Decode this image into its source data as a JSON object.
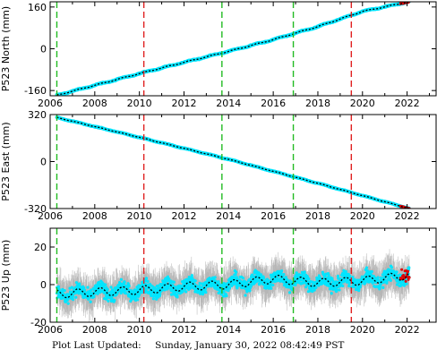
{
  "footer": {
    "label": "Plot Last Updated:",
    "timestamp": "Sunday, January 30, 2022 08:42:49 PST"
  },
  "colors": {
    "data": "#00e5ff",
    "model": "#000000",
    "error_bars": "#b0b0b0",
    "recent": "#e00000",
    "green_lines": "#22bb22",
    "red_lines": "#e02020"
  },
  "chart_data": [
    {
      "type": "scatter",
      "ylabel": "P523 North (mm)",
      "xlim": [
        2006.0,
        2023.3
      ],
      "ylim": [
        -180,
        180
      ],
      "yticks": [
        -160,
        0,
        160
      ],
      "xticks": [
        2006,
        2008,
        2010,
        2012,
        2014,
        2016,
        2018,
        2020,
        2022
      ],
      "green_lines": [
        2006.3,
        2013.7,
        2016.9
      ],
      "red_lines": [
        2010.2,
        2019.5
      ],
      "series": [
        {
          "x": [
            2006.3,
            2008,
            2010,
            2012,
            2014,
            2016,
            2018,
            2020,
            2022.1
          ],
          "values": [
            -178,
            -140,
            -95,
            -52,
            -10,
            35,
            85,
            143,
            180
          ]
        }
      ]
    },
    {
      "type": "scatter",
      "ylabel": "P523 East (mm)",
      "xlim": [
        2006.0,
        2023.3
      ],
      "ylim": [
        -320,
        320
      ],
      "yticks": [
        -320,
        0,
        320
      ],
      "xticks": [
        2006,
        2008,
        2010,
        2012,
        2014,
        2016,
        2018,
        2020,
        2022
      ],
      "green_lines": [
        2006.3,
        2013.7,
        2016.9
      ],
      "red_lines": [
        2010.2,
        2019.5
      ],
      "series": [
        {
          "x": [
            2006.3,
            2010,
            2014,
            2018,
            2022.1
          ],
          "values": [
            300,
            165,
            15,
            -148,
            -320
          ]
        }
      ]
    },
    {
      "type": "scatter",
      "ylabel": "P523 Up (mm)",
      "xlim": [
        2006.0,
        2023.3
      ],
      "ylim": [
        -20,
        30
      ],
      "yticks": [
        -20,
        0,
        20
      ],
      "xticks": [
        2006,
        2008,
        2010,
        2012,
        2014,
        2016,
        2018,
        2020,
        2022
      ],
      "green_lines": [
        2006.3,
        2013.7,
        2016.9
      ],
      "red_lines": [
        2010.2,
        2019.5
      ],
      "series": [
        {
          "x": [
            2006.3,
            2008,
            2010,
            2012,
            2014,
            2016,
            2018,
            2020,
            2022.1
          ],
          "values": [
            -5,
            -4,
            -3,
            -1,
            0,
            3,
            1,
            2,
            5
          ]
        }
      ]
    }
  ]
}
